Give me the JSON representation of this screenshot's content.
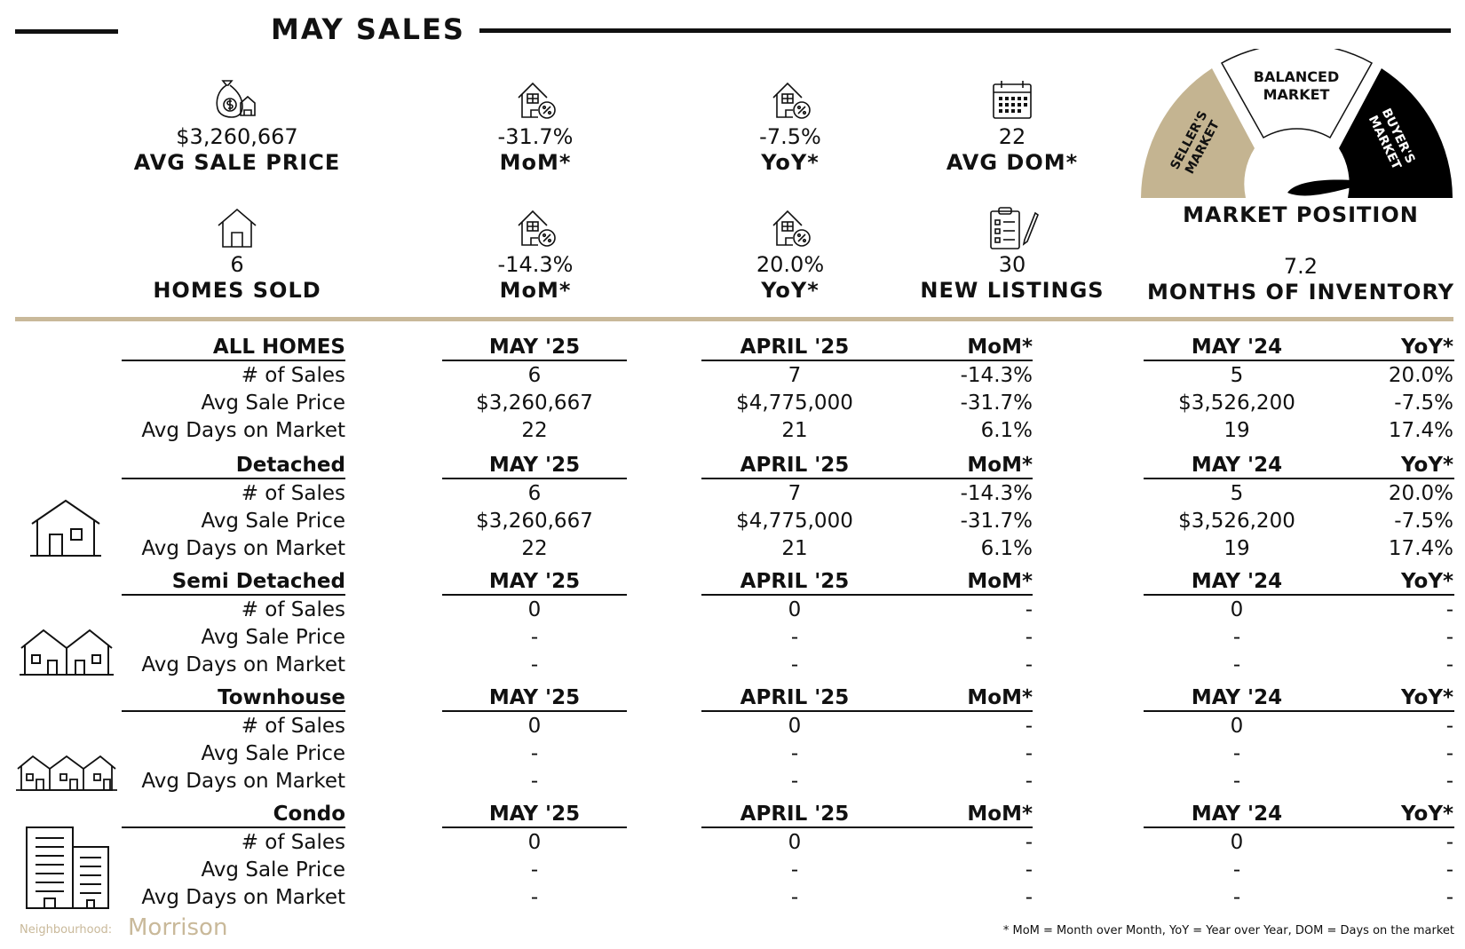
{
  "title": "MAY SALES",
  "stats_top": [
    {
      "value": "$3,260,667",
      "label": "AVG SALE PRICE",
      "icon": "money-bag-house-icon"
    },
    {
      "value": "-31.7%",
      "label": "MoM*",
      "icon": "house-percent-icon"
    },
    {
      "value": "-7.5%",
      "label": "YoY*",
      "icon": "house-percent-icon"
    },
    {
      "value": "22",
      "label": "AVG DOM*",
      "icon": "calendar-icon"
    }
  ],
  "stats_bottom": [
    {
      "value": "6",
      "label": "HOMES SOLD",
      "icon": "house-icon"
    },
    {
      "value": "-14.3%",
      "label": "MoM*",
      "icon": "house-percent-icon"
    },
    {
      "value": "20.0%",
      "label": "YoY*",
      "icon": "house-percent-icon"
    },
    {
      "value": "30",
      "label": "NEW LISTINGS",
      "icon": "clipboard-pen-icon"
    },
    {
      "value": "7.2",
      "label": "MONTHS OF INVENTORY"
    }
  ],
  "gauge": {
    "title": "MARKET POSITION",
    "left_label_1": "SELLER'S",
    "left_label_2": "MARKET",
    "mid_label_1": "BALANCED",
    "mid_label_2": "MARKET",
    "right_label_1": "BUYER'S",
    "right_label_2": "MARKET",
    "colors": {
      "seller": "#c4b491",
      "balanced": "#ffffff",
      "buyer": "#000000"
    }
  },
  "columns": {
    "current": "MAY '25",
    "prior": "APRIL '25",
    "mom": "MoM*",
    "last_year": "MAY '24",
    "yoy": "YoY*"
  },
  "row_labels": {
    "sales": "# of Sales",
    "price": "Avg Sale Price",
    "dom": "Avg Days on Market"
  },
  "sections": [
    {
      "name": "ALL HOMES",
      "rows": [
        [
          "6",
          "7",
          "-14.3%",
          "5",
          "20.0%"
        ],
        [
          "$3,260,667",
          "$4,775,000",
          "-31.7%",
          "$3,526,200",
          "-7.5%"
        ],
        [
          "22",
          "21",
          "6.1%",
          "19",
          "17.4%"
        ]
      ]
    },
    {
      "name": "Detached",
      "rows": [
        [
          "6",
          "7",
          "-14.3%",
          "5",
          "20.0%"
        ],
        [
          "$3,260,667",
          "$4,775,000",
          "-31.7%",
          "$3,526,200",
          "-7.5%"
        ],
        [
          "22",
          "21",
          "6.1%",
          "19",
          "17.4%"
        ]
      ]
    },
    {
      "name": "Semi Detached",
      "rows": [
        [
          "0",
          "0",
          "-",
          "0",
          "-"
        ],
        [
          "-",
          "-",
          "-",
          "-",
          "-"
        ],
        [
          "-",
          "-",
          "-",
          "-",
          "-"
        ]
      ]
    },
    {
      "name": "Townhouse",
      "rows": [
        [
          "0",
          "0",
          "-",
          "0",
          "-"
        ],
        [
          "-",
          "-",
          "-",
          "-",
          "-"
        ],
        [
          "-",
          "-",
          "-",
          "-",
          "-"
        ]
      ]
    },
    {
      "name": "Condo",
      "rows": [
        [
          "0",
          "0",
          "-",
          "0",
          "-"
        ],
        [
          "-",
          "-",
          "-",
          "-",
          "-"
        ],
        [
          "-",
          "-",
          "-",
          "-",
          "-"
        ]
      ]
    }
  ],
  "footer": {
    "neighbourhood_label": "Neighbourhood:",
    "neighbourhood_name": "Morrison",
    "footnote": "* MoM = Month over Month, YoY = Year over Year, DOM = Days on the market"
  },
  "colors": {
    "gold": "#c9b99a",
    "ink": "#111111"
  }
}
